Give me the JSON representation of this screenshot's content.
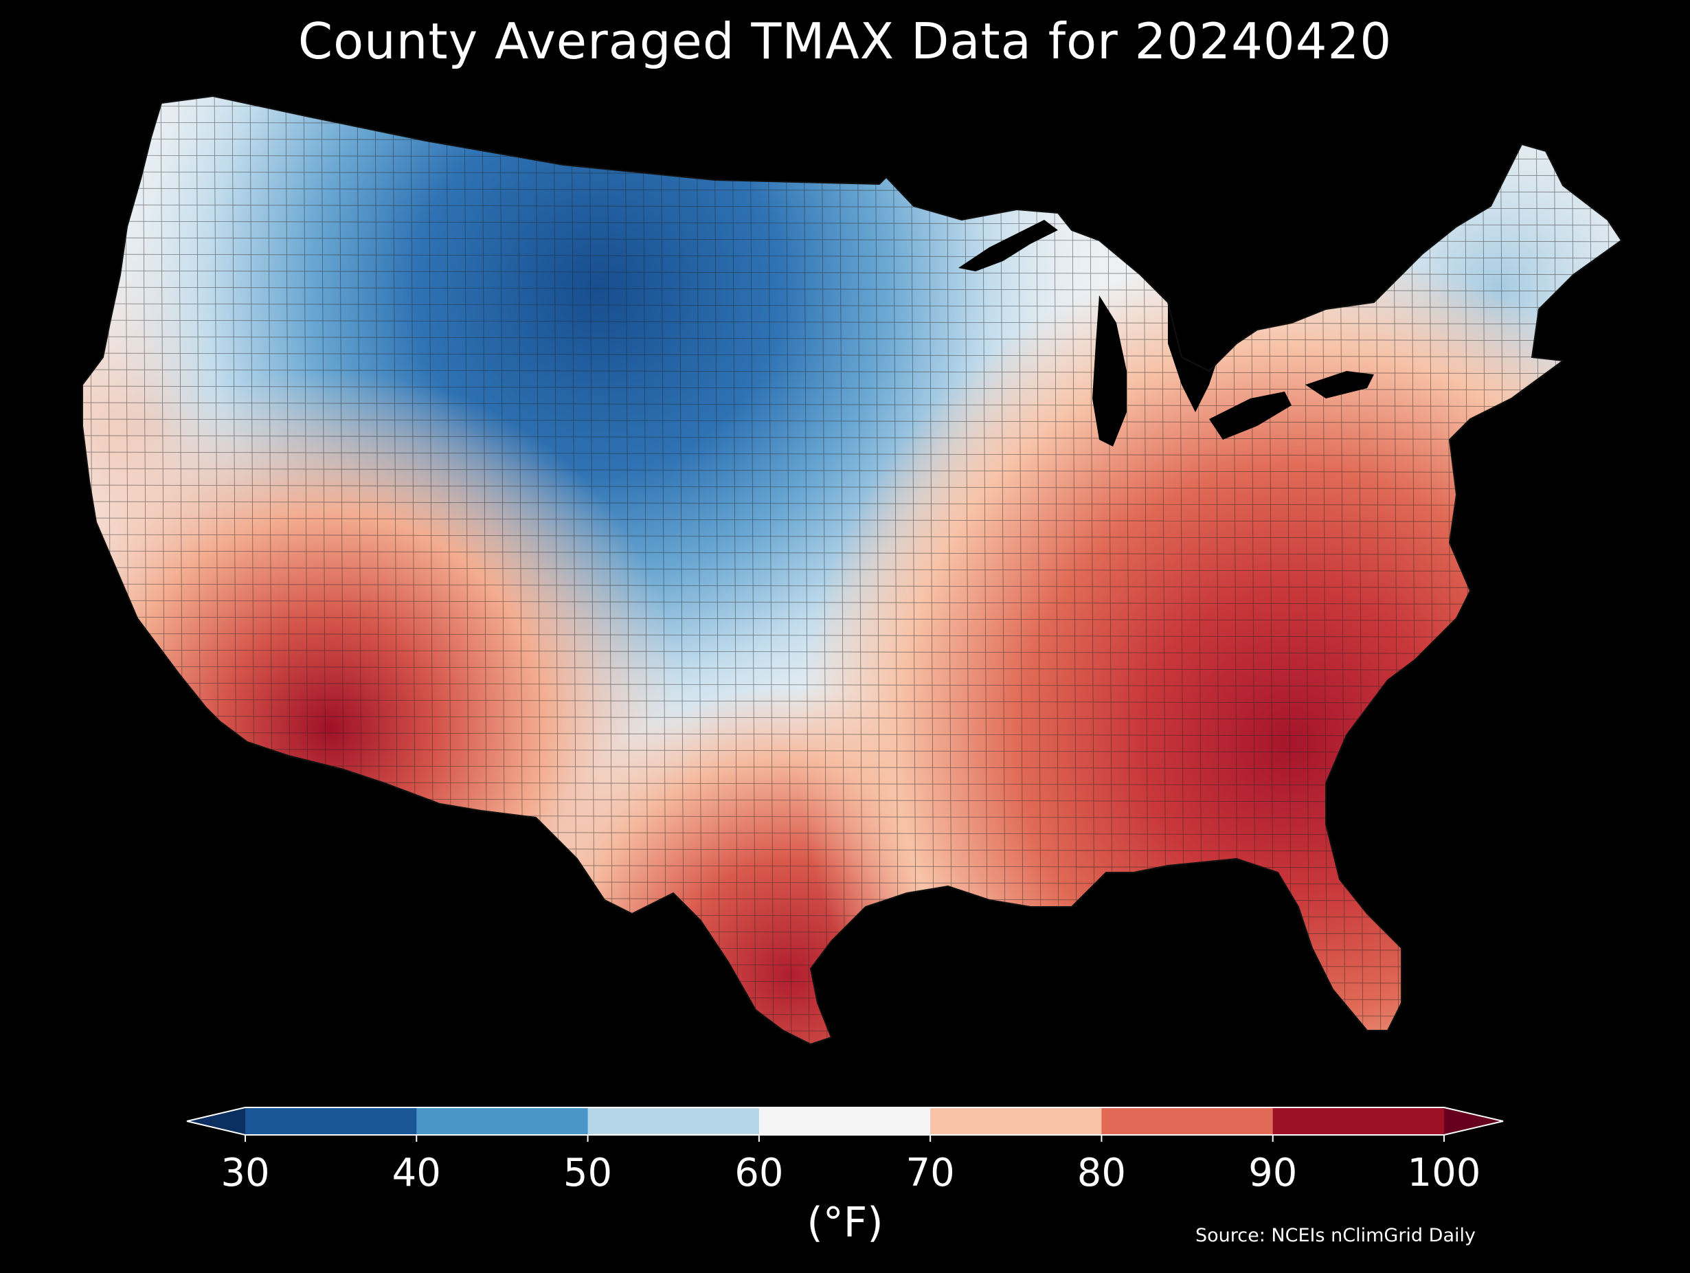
{
  "title": "County Averaged TMAX Data for 20240420",
  "source": "Source: NCEIs nClimGrid Daily",
  "colorbar": {
    "unit_label": "(°F)",
    "ticks": [
      "30",
      "40",
      "50",
      "60",
      "70",
      "80",
      "90",
      "100"
    ],
    "bins": [
      {
        "from": 30,
        "to": 40,
        "color": "#1a5598"
      },
      {
        "from": 40,
        "to": 50,
        "color": "#4a96c6"
      },
      {
        "from": 50,
        "to": 60,
        "color": "#b5d6e8"
      },
      {
        "from": 60,
        "to": 70,
        "color": "#f5f5f5"
      },
      {
        "from": 70,
        "to": 80,
        "color": "#f9c2a6"
      },
      {
        "from": 80,
        "to": 90,
        "color": "#e06a56"
      },
      {
        "from": 90,
        "to": 100,
        "color": "#9d1026"
      }
    ],
    "under_color": "#0c2f61",
    "over_color": "#66001e"
  },
  "map": {
    "region": "Contiguous United States",
    "background": "#000000",
    "boundary_color": "#222222"
  }
}
